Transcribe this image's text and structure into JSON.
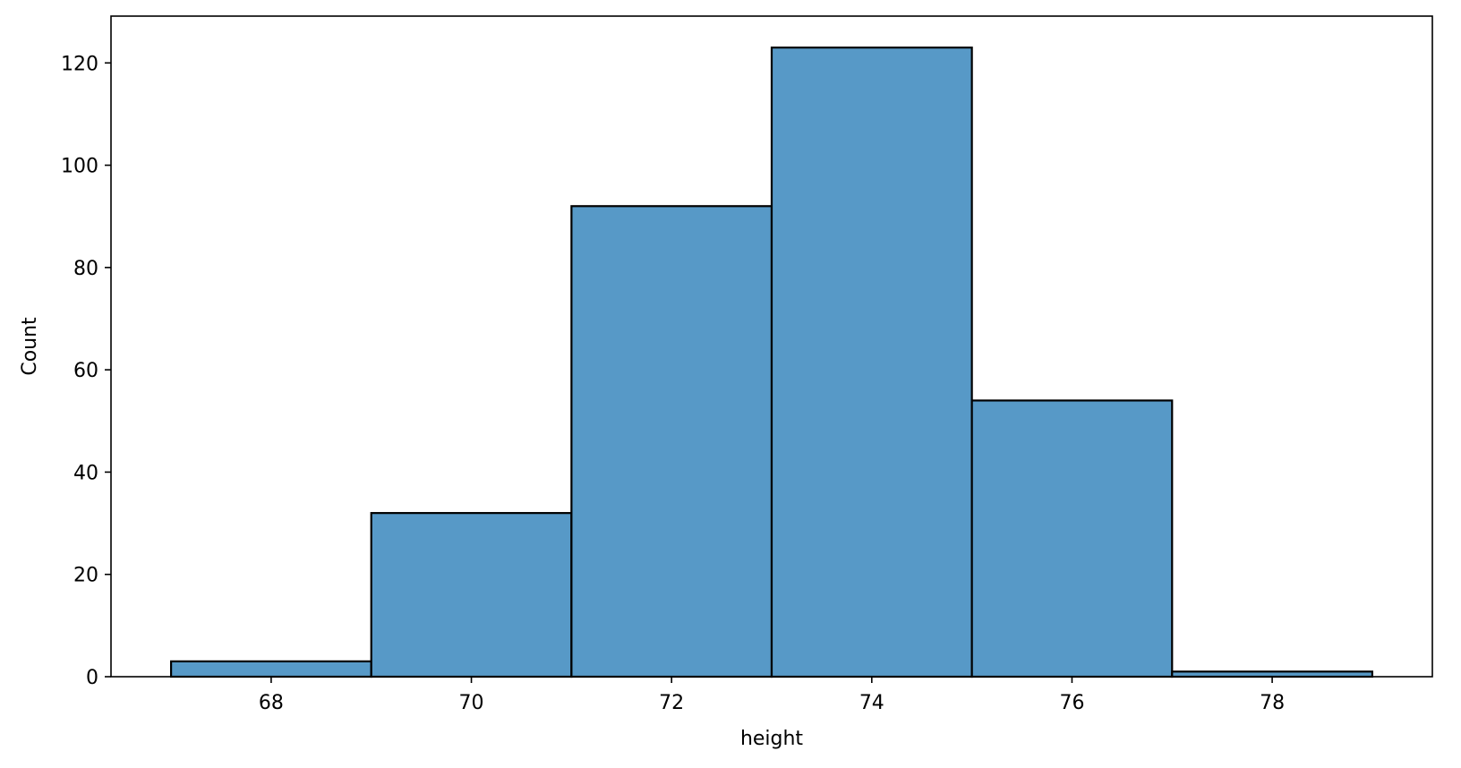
{
  "chart_data": {
    "type": "bar",
    "variant": "histogram",
    "xlabel": "height",
    "ylabel": "Count",
    "bins": [
      {
        "start": 67,
        "end": 69,
        "count": 3
      },
      {
        "start": 69,
        "end": 71,
        "count": 32
      },
      {
        "start": 71,
        "end": 73,
        "count": 92
      },
      {
        "start": 73,
        "end": 75,
        "count": 123
      },
      {
        "start": 75,
        "end": 77,
        "count": 54
      },
      {
        "start": 77,
        "end": 79,
        "count": 1
      }
    ],
    "xlim": [
      66.4,
      79.6
    ],
    "ylim": [
      0,
      129.15
    ],
    "xticks": [
      68,
      70,
      72,
      74,
      76,
      78
    ],
    "yticks": [
      0,
      20,
      40,
      60,
      80,
      100,
      120
    ],
    "grid": false,
    "legend": "none",
    "colors": {
      "bar_fill": "#5799c7",
      "bar_edge": "#000000"
    }
  }
}
